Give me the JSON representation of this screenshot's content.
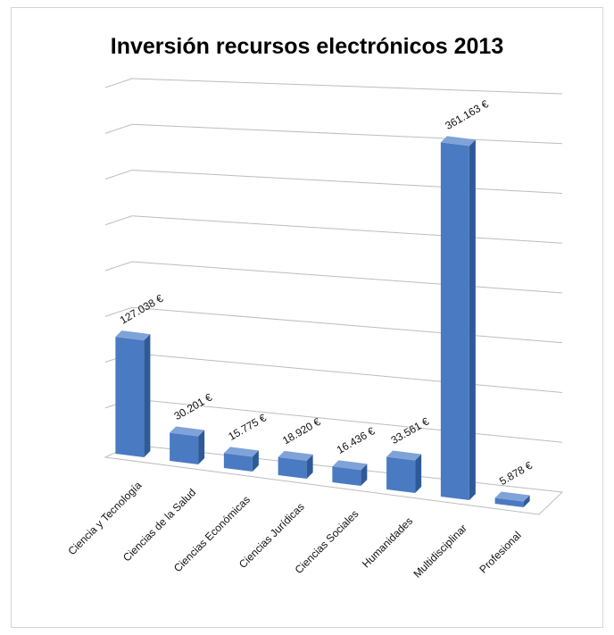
{
  "chart_data": {
    "type": "bar",
    "title": "Inversión recursos electrónicos 2013",
    "categories": [
      "Ciencia y Tecnología",
      "Ciencias de la Salud",
      "Ciencias Económicas",
      "Ciencias Jurídicas",
      "Ciencias Sociales",
      "Humanidades",
      "Multidisciplinar",
      "Profesional"
    ],
    "values": [
      127038,
      30201,
      15775,
      18920,
      16436,
      33561,
      361163,
      5878
    ],
    "data_labels": [
      "127.038 €",
      "30.201 €",
      "15.775 €",
      "18.920 €",
      "16.436 €",
      "33.561 €",
      "361.163 €",
      "5.878 €"
    ],
    "ylim": [
      0,
      400000
    ],
    "grid": true,
    "legend": "none",
    "bar_color": "#4a7ac2"
  }
}
